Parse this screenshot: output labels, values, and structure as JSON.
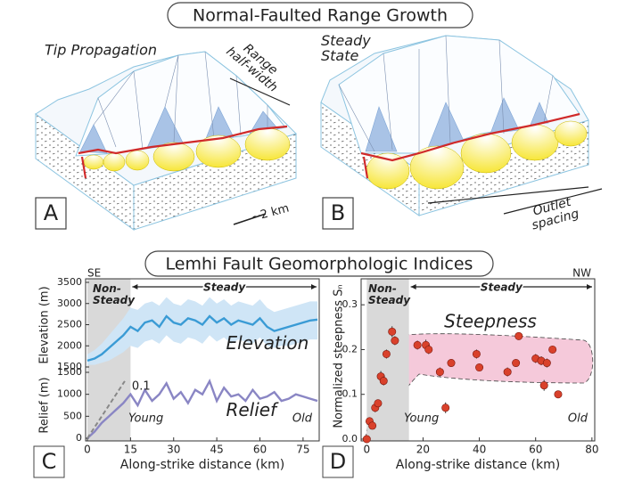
{
  "figure": {
    "title_top": "Normal-Faulted Range Growth",
    "title_bottom": "Lemhi Fault Geomorphologic Indices",
    "panel_a": {
      "title": "Tip Propagation",
      "dimension": "Range half-width",
      "scale": "~2 km",
      "label": "A"
    },
    "panel_b": {
      "title": "Steady State",
      "dimension": "Outlet spacing",
      "label": "B"
    }
  },
  "chart_data": [
    {
      "type": "line",
      "label": "C",
      "direction": "SE",
      "zones": [
        "Non-Steady",
        "Steady"
      ],
      "nonsteady_x": [
        0,
        15
      ],
      "x_label": "Along-strike distance (km)",
      "y_label": "Elevation (m)",
      "y2_label": "Relief (m)",
      "annotations": {
        "young": "Young",
        "old": "Old"
      },
      "x": [
        0,
        2.5,
        5,
        7.5,
        10,
        12.5,
        15,
        17.5,
        20,
        22.5,
        25,
        27.5,
        30,
        32.5,
        35,
        37.5,
        40,
        42.5,
        45,
        47.5,
        50,
        52.5,
        55,
        57.5,
        60,
        62.5,
        65,
        67.5,
        70,
        72.5,
        75,
        77.5,
        80
      ],
      "series": [
        {
          "name": "Elevation",
          "color": "#3a9bd5",
          "band_color": "#cfe5f6",
          "values": [
            1650,
            1700,
            1800,
            1950,
            2100,
            2250,
            2450,
            2350,
            2550,
            2600,
            2450,
            2700,
            2550,
            2500,
            2650,
            2600,
            2500,
            2700,
            2550,
            2650,
            2500,
            2600,
            2550,
            2500,
            2650,
            2450,
            2350,
            2400,
            2450,
            2500,
            2550,
            2600,
            2620
          ],
          "range_low": [
            1550,
            1550,
            1600,
            1650,
            1750,
            1850,
            2000,
            1950,
            2100,
            2150,
            2050,
            2250,
            2100,
            2050,
            2200,
            2150,
            2050,
            2250,
            2100,
            2200,
            2050,
            2150,
            2100,
            2050,
            2200,
            2000,
            1950,
            2000,
            2000,
            2050,
            2100,
            2150,
            2150
          ],
          "range_high": [
            1800,
            1900,
            2050,
            2250,
            2450,
            2650,
            2900,
            2850,
            3000,
            3050,
            2950,
            3150,
            3000,
            2950,
            3100,
            3050,
            2950,
            3150,
            3000,
            3100,
            2950,
            3050,
            3000,
            2950,
            3100,
            2900,
            2800,
            2850,
            2900,
            2950,
            3000,
            3050,
            3050
          ]
        },
        {
          "name": "Relief",
          "color": "#8a86c4",
          "axis": "y2",
          "values": [
            0,
            150,
            350,
            500,
            650,
            800,
            1000,
            750,
            1100,
            850,
            1000,
            1250,
            900,
            1050,
            800,
            1100,
            1000,
            1300,
            850,
            1150,
            950,
            1000,
            850,
            1100,
            900,
            950,
            1050,
            850,
            900,
            1000,
            950,
            900,
            850
          ]
        },
        {
          "name": "0.1",
          "color": "#888888",
          "axis": "y2",
          "dashed": true,
          "x": [
            0,
            13
          ],
          "values": [
            0,
            1300
          ]
        }
      ],
      "xlim": [
        0,
        80
      ],
      "xticks": [
        0,
        15,
        30,
        45,
        60,
        75
      ],
      "ylim": [
        1500,
        3500
      ],
      "yticks": [
        1500,
        2000,
        2500,
        3000,
        3500
      ],
      "y2lim": [
        0,
        1500
      ],
      "y2ticks": [
        0,
        500,
        1000,
        1500
      ]
    },
    {
      "type": "scatter",
      "label": "D",
      "direction": "NW",
      "zones": [
        "Non-Steady",
        "Steady"
      ],
      "nonsteady_x": [
        0,
        15
      ],
      "x_label": "Along-strike distance (km)",
      "y_label": "Normalized steepness Sₙ",
      "annotations": {
        "young": "Young",
        "old": "Old"
      },
      "name": "Steepness",
      "color": "#d9412b",
      "envelope_color": "#f5c9da",
      "x": [
        0,
        1,
        2,
        3,
        4,
        5,
        6,
        7,
        9,
        10,
        18,
        21,
        22,
        26,
        28,
        30,
        39,
        40,
        50,
        53,
        54,
        60,
        62,
        63,
        64,
        66,
        68
      ],
      "values": [
        0.0,
        0.04,
        0.03,
        0.07,
        0.08,
        0.14,
        0.13,
        0.19,
        0.24,
        0.22,
        0.21,
        0.21,
        0.2,
        0.15,
        0.07,
        0.17,
        0.19,
        0.16,
        0.15,
        0.17,
        0.23,
        0.18,
        0.175,
        0.12,
        0.17,
        0.2,
        0.1
      ],
      "errors": [
        0.005,
        0.008,
        0.006,
        0.01,
        0.008,
        0.012,
        0.01,
        0.01,
        0.012,
        0.01,
        0.01,
        0.012,
        0.01,
        0.01,
        0.012,
        0.008,
        0.01,
        0.008,
        0.01,
        0.008,
        0.006,
        0.01,
        0.01,
        0.012,
        0.01,
        0.008,
        0.006
      ],
      "xlim": [
        -2,
        81
      ],
      "xticks": [
        0,
        20,
        40,
        60,
        80
      ],
      "ylim": [
        0,
        0.36
      ],
      "yticks": [
        {
          "value": 0,
          "label": "0.0"
        },
        0.1,
        0.2,
        0.3
      ]
    }
  ]
}
